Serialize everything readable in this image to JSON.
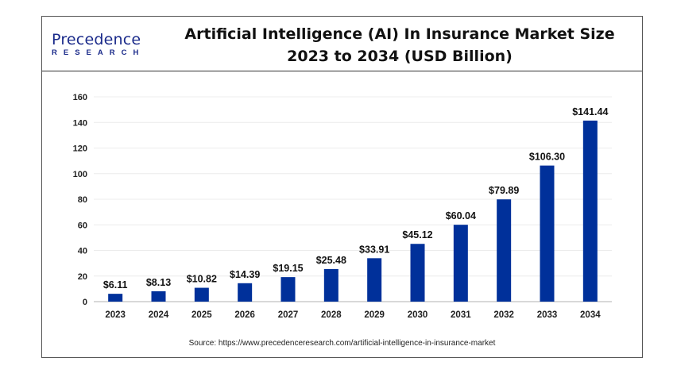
{
  "logo": {
    "main": "Precedence",
    "sub": "RESEARCH"
  },
  "title": "Artificial Intelligence (AI) In Insurance Market Size 2023 to 2034 (USD Billion)",
  "source": "Source: https://www.precedenceresearch.com/artificial-intelligence-in-insurance-market",
  "colors": {
    "bar": "#00309A",
    "logo": "#1a2a8a"
  },
  "chart_data": {
    "type": "bar",
    "title": "Artificial Intelligence (AI) In Insurance Market Size 2023 to 2034 (USD Billion)",
    "categories": [
      "2023",
      "2024",
      "2025",
      "2026",
      "2027",
      "2028",
      "2029",
      "2030",
      "2031",
      "2032",
      "2033",
      "2034"
    ],
    "values": [
      6.11,
      8.13,
      10.82,
      14.39,
      19.15,
      25.48,
      33.91,
      45.12,
      60.04,
      79.89,
      106.3,
      141.44
    ],
    "data_labels": [
      "$6.11",
      "$8.13",
      "$10.82",
      "$14.39",
      "$19.15",
      "$25.48",
      "$33.91",
      "$45.12",
      "$60.04",
      "$79.89",
      "$106.30",
      "$141.44"
    ],
    "yticks": [
      0,
      20,
      40,
      60,
      80,
      100,
      120,
      140,
      160
    ],
    "ylim": [
      0,
      160
    ],
    "xlabel": "",
    "ylabel": "",
    "grid": true,
    "legend": "none"
  }
}
